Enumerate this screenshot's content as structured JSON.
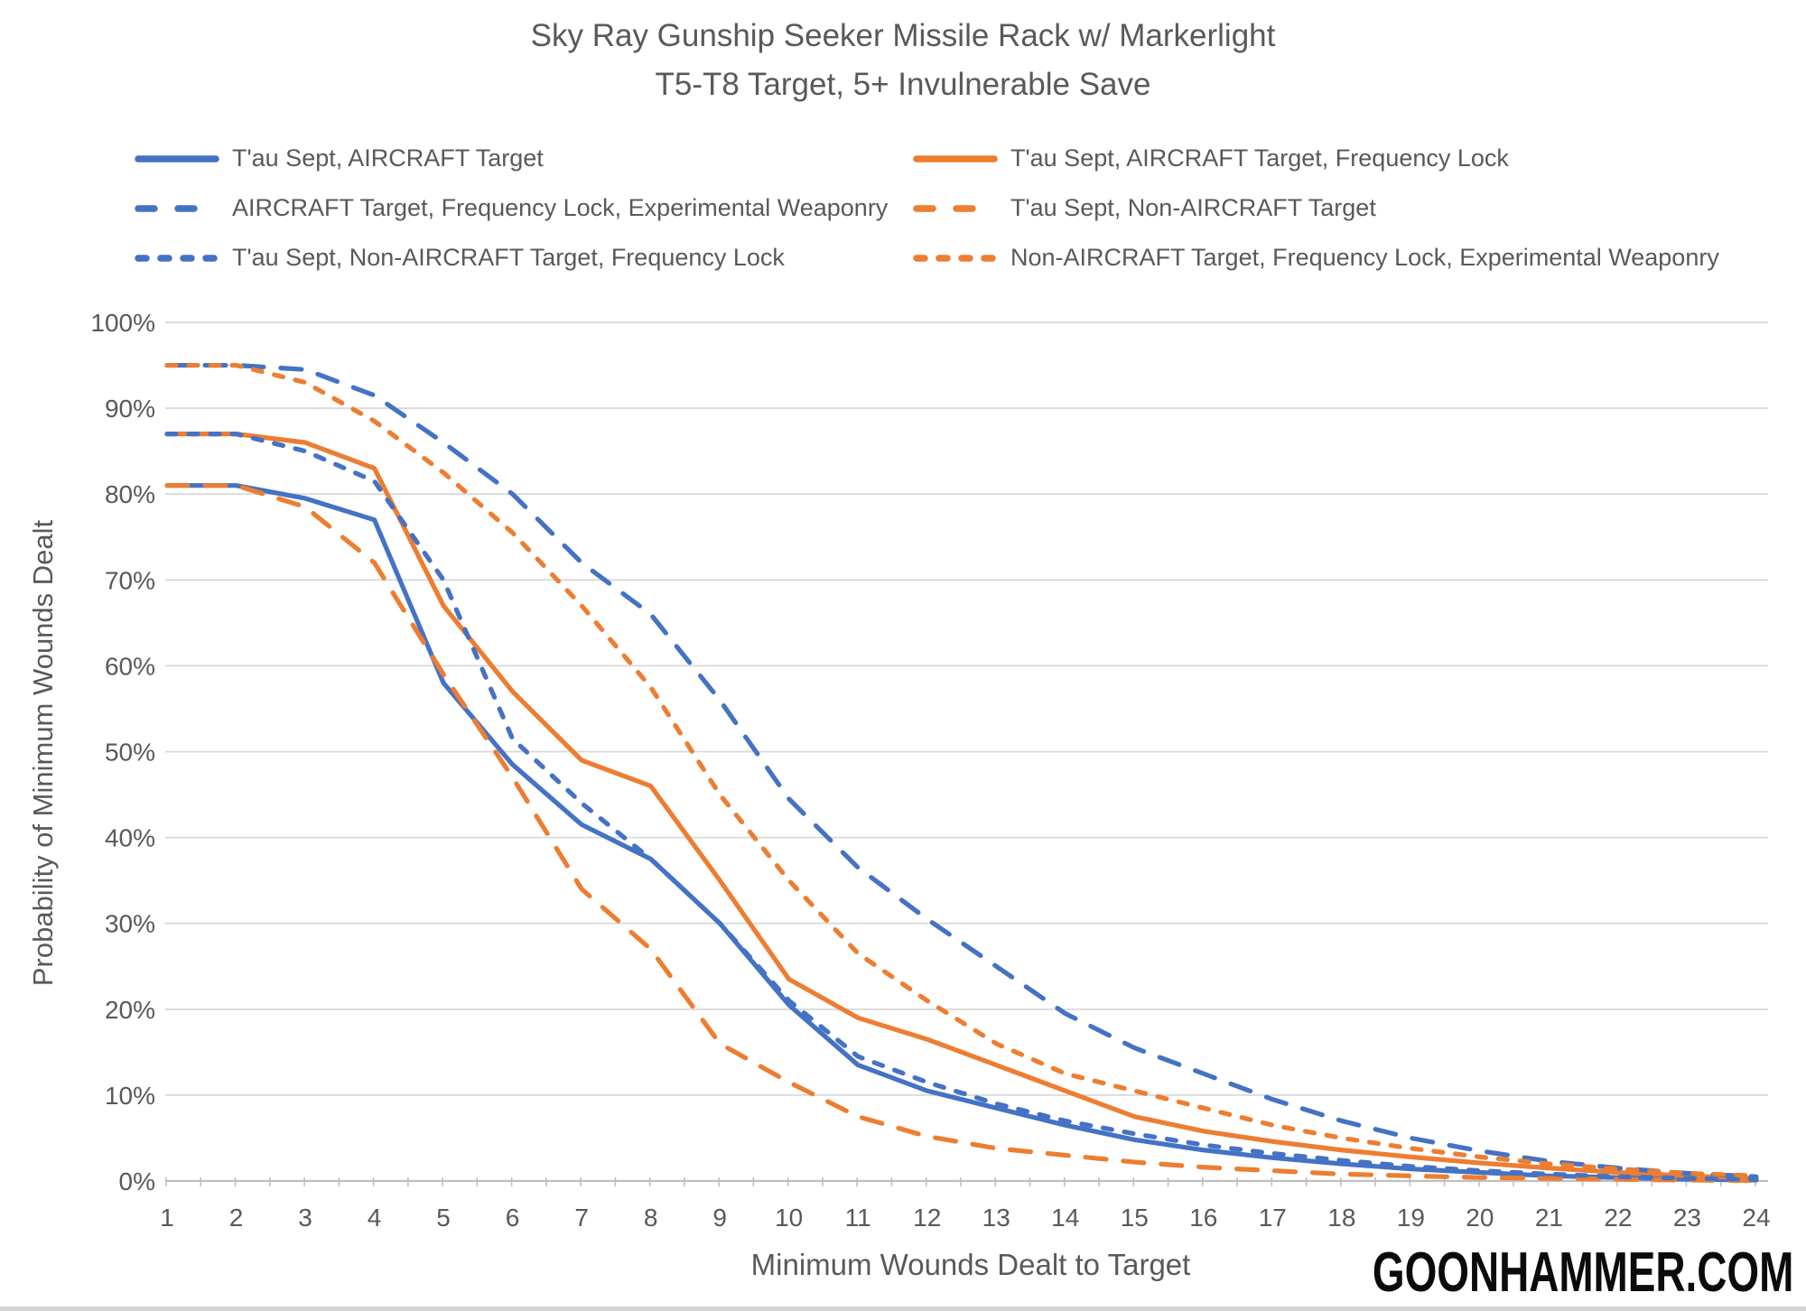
{
  "title": {
    "line1": "Sky Ray Gunship Seeker Missile Rack w/ Markerlight",
    "line2": "T5-T8 Target, 5+ Invulnerable Save"
  },
  "watermark": "GOONHAMMER.COM",
  "chart_data": {
    "type": "line",
    "title": "Sky Ray Gunship Seeker Missile Rack w/ Markerlight — T5-T8 Target, 5+ Invulnerable Save",
    "xlabel": "Minimum Wounds Dealt to Target",
    "ylabel": "Probability of Minimum Wounds Dealt",
    "x": [
      1,
      2,
      3,
      4,
      5,
      6,
      7,
      8,
      9,
      10,
      11,
      12,
      13,
      14,
      15,
      16,
      17,
      18,
      19,
      20,
      21,
      22,
      23,
      24
    ],
    "xlim": [
      1,
      24
    ],
    "ylim": [
      0,
      100
    ],
    "y_ticks": [
      "0%",
      "10%",
      "20%",
      "30%",
      "40%",
      "50%",
      "60%",
      "70%",
      "80%",
      "90%",
      "100%"
    ],
    "grid": "horizontal",
    "legend_position": "top",
    "colors": {
      "blue": "#4472C4",
      "orange": "#ED7D31",
      "grid": "#d9d9d9",
      "axis": "#bfbfbf",
      "text": "#595959"
    },
    "series": [
      {
        "name": "T'au Sept, AIRCRAFT Target",
        "color": "blue",
        "dash": "solid",
        "values": [
          81,
          81,
          79.5,
          77,
          58,
          48.5,
          41.5,
          37.5,
          30,
          20.5,
          13.5,
          10.5,
          8.5,
          6.5,
          4.8,
          3.6,
          2.7,
          2,
          1.4,
          1,
          0.6,
          0.4,
          0.2,
          0.1
        ]
      },
      {
        "name": "T'au Sept, AIRCRAFT Target, Frequency Lock",
        "color": "orange",
        "dash": "solid",
        "values": [
          87,
          87,
          86,
          83,
          67,
          57,
          49,
          46,
          35,
          23.5,
          19,
          16.5,
          13.5,
          10.5,
          7.5,
          5.8,
          4.6,
          3.6,
          2.8,
          2.1,
          1.5,
          1,
          0.6,
          0.3
        ]
      },
      {
        "name": "AIRCRAFT Target, Frequency Lock, Experimental Weaponry",
        "color": "blue",
        "dash": "long",
        "values": [
          95,
          95,
          94.5,
          91.5,
          86,
          80,
          72,
          66,
          56,
          44.5,
          36.5,
          30.5,
          25,
          19.5,
          15.5,
          12.5,
          9.5,
          7,
          5,
          3.5,
          2.3,
          1.5,
          0.9,
          0.5
        ]
      },
      {
        "name": "T'au Sept, Non-AIRCRAFT Target",
        "color": "orange",
        "dash": "long",
        "values": [
          81,
          81,
          78.5,
          72,
          59,
          47,
          34,
          27,
          16,
          11.5,
          7.5,
          5.2,
          3.8,
          3,
          2.2,
          1.6,
          1.2,
          0.8,
          0.6,
          0.4,
          0.3,
          0.2,
          0.1,
          0.05
        ]
      },
      {
        "name": "T'au Sept, Non-AIRCRAFT Target, Frequency Lock",
        "color": "blue",
        "dash": "short",
        "values": [
          87,
          87,
          85,
          81.5,
          70,
          51.5,
          44,
          37.5,
          30,
          21,
          14.5,
          11.5,
          9,
          7,
          5.5,
          4.2,
          3.2,
          2.4,
          1.7,
          1.2,
          0.8,
          0.5,
          0.3,
          0.2
        ]
      },
      {
        "name": "Non-AIRCRAFT Target, Frequency Lock, Experimental Weaponry",
        "color": "orange",
        "dash": "short",
        "values": [
          95,
          95,
          93,
          88.5,
          82.5,
          75.5,
          67,
          57.5,
          45,
          35,
          26.5,
          21,
          16,
          12.5,
          10.5,
          8.5,
          6.5,
          5,
          3.8,
          2.8,
          2,
          1.4,
          0.9,
          0.6
        ]
      }
    ]
  }
}
